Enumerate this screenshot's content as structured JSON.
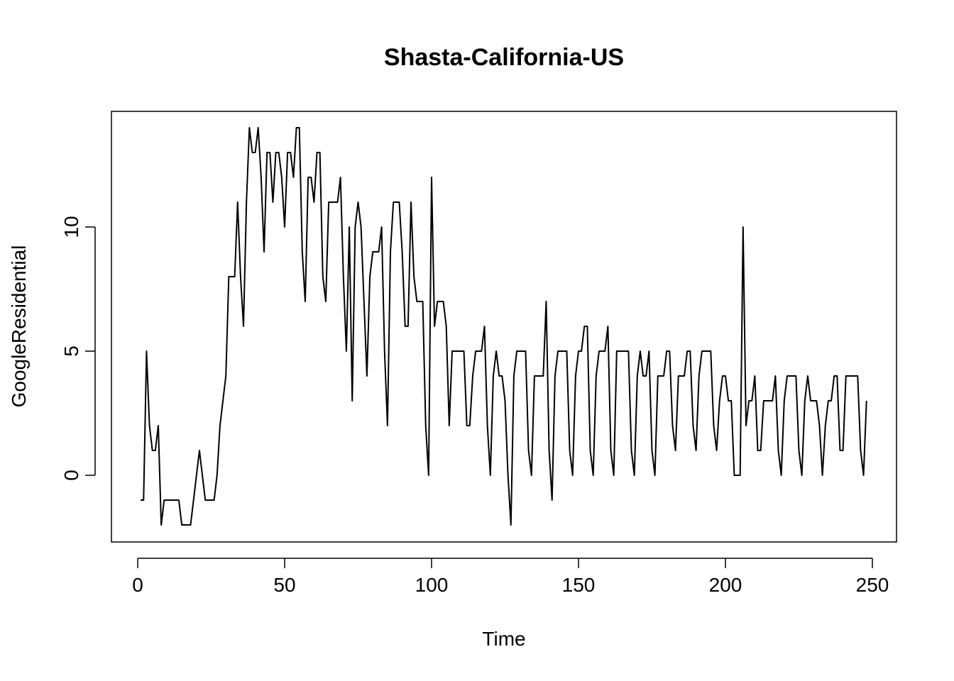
{
  "chart_data": {
    "type": "line",
    "title": "Shasta-California-US",
    "xlabel": "Time",
    "ylabel": "GoogleResidential",
    "xlim": [
      0,
      250
    ],
    "ylim": [
      -2,
      14
    ],
    "x_ticks": [
      0,
      50,
      100,
      150,
      200,
      250
    ],
    "x_tick_labels": [
      "0",
      "50",
      "100",
      "150",
      "200",
      "250"
    ],
    "y_ticks": [
      0,
      5,
      10
    ],
    "y_tick_labels": [
      "0",
      "5",
      "10"
    ],
    "grid": false,
    "legend": "none",
    "line_color": "#000000",
    "x_start": 1,
    "values": [
      -1,
      -1,
      5,
      2,
      1,
      1,
      2,
      -2,
      -1,
      -1,
      -1,
      -1,
      -1,
      -1,
      -2,
      -2,
      -2,
      -2,
      -1,
      0,
      1,
      0,
      -1,
      -1,
      -1,
      -1,
      0,
      2,
      3,
      4,
      8,
      8,
      8,
      11,
      8,
      6,
      11,
      14,
      13,
      13,
      14,
      12,
      9,
      13,
      13,
      11,
      13,
      13,
      12,
      10,
      13,
      13,
      12,
      14,
      14,
      9,
      7,
      12,
      12,
      11,
      13,
      13,
      8,
      7,
      11,
      11,
      11,
      11,
      12,
      8,
      5,
      10,
      3,
      10,
      11,
      10,
      7,
      4,
      8,
      9,
      9,
      9,
      10,
      5,
      2,
      9,
      11,
      11,
      11,
      9,
      6,
      6,
      11,
      8,
      7,
      7,
      7,
      2,
      0,
      12,
      6,
      7,
      7,
      7,
      6,
      2,
      5,
      5,
      5,
      5,
      5,
      2,
      2,
      4,
      5,
      5,
      5,
      6,
      2,
      0,
      4,
      5,
      4,
      4,
      3,
      0,
      -2,
      4,
      5,
      5,
      5,
      5,
      1,
      0,
      4,
      4,
      4,
      4,
      7,
      1,
      -1,
      4,
      5,
      5,
      5,
      5,
      1,
      0,
      4,
      5,
      5,
      6,
      6,
      1,
      0,
      4,
      5,
      5,
      5,
      6,
      1,
      0,
      5,
      5,
      5,
      5,
      5,
      1,
      0,
      4,
      5,
      4,
      4,
      5,
      1,
      0,
      4,
      4,
      4,
      5,
      5,
      2,
      1,
      4,
      4,
      4,
      5,
      5,
      2,
      1,
      4,
      5,
      5,
      5,
      5,
      2,
      1,
      3,
      4,
      4,
      3,
      3,
      0,
      0,
      0,
      10,
      2,
      3,
      3,
      4,
      1,
      1,
      3,
      3,
      3,
      3,
      4,
      1,
      0,
      3,
      4,
      4,
      4,
      4,
      1,
      0,
      3,
      4,
      3,
      3,
      3,
      2,
      0,
      2,
      3,
      3,
      4,
      4,
      1,
      1,
      4,
      4,
      4,
      4,
      4,
      1,
      0,
      3
    ]
  }
}
